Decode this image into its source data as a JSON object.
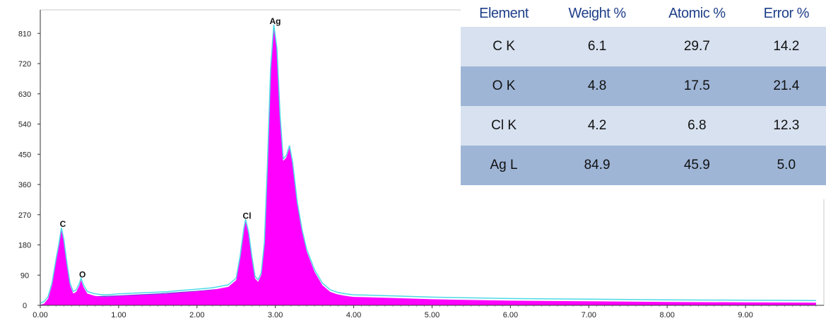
{
  "chart_data": {
    "type": "area",
    "xlim": [
      0,
      10
    ],
    "ylim": [
      0,
      880
    ],
    "x_ticks": [
      "0.00",
      "1.00",
      "2.00",
      "3.00",
      "4.00",
      "5.00",
      "6.00",
      "7.00",
      "8.00",
      "9.00"
    ],
    "y_ticks": [
      "0",
      "90",
      "180",
      "270",
      "360",
      "450",
      "540",
      "630",
      "720",
      "810"
    ],
    "spectrum_color": "#ff00ff",
    "fit_color": "#4dd9e6",
    "background_color": "#5a3fd6",
    "peaks": [
      {
        "label": "C",
        "x": 0.27,
        "y": 225
      },
      {
        "label": "O",
        "x": 0.52,
        "y": 75
      },
      {
        "label": "Cl",
        "x": 2.62,
        "y": 250
      },
      {
        "label": "Ag",
        "x": 2.98,
        "y": 830
      }
    ],
    "spectrum": [
      [
        0.0,
        0
      ],
      [
        0.05,
        5
      ],
      [
        0.1,
        20
      ],
      [
        0.15,
        60
      ],
      [
        0.2,
        130
      ],
      [
        0.24,
        180
      ],
      [
        0.27,
        225
      ],
      [
        0.3,
        190
      ],
      [
        0.34,
        120
      ],
      [
        0.38,
        60
      ],
      [
        0.42,
        35
      ],
      [
        0.46,
        40
      ],
      [
        0.5,
        60
      ],
      [
        0.52,
        75
      ],
      [
        0.55,
        55
      ],
      [
        0.6,
        35
      ],
      [
        0.7,
        28
      ],
      [
        0.8,
        25
      ],
      [
        0.9,
        26
      ],
      [
        1.0,
        28
      ],
      [
        1.2,
        30
      ],
      [
        1.4,
        32
      ],
      [
        1.6,
        34
      ],
      [
        1.8,
        38
      ],
      [
        2.0,
        42
      ],
      [
        2.2,
        46
      ],
      [
        2.4,
        55
      ],
      [
        2.5,
        75
      ],
      [
        2.55,
        140
      ],
      [
        2.6,
        225
      ],
      [
        2.62,
        250
      ],
      [
        2.66,
        210
      ],
      [
        2.7,
        140
      ],
      [
        2.74,
        80
      ],
      [
        2.78,
        70
      ],
      [
        2.82,
        90
      ],
      [
        2.86,
        180
      ],
      [
        2.9,
        420
      ],
      [
        2.94,
        700
      ],
      [
        2.98,
        830
      ],
      [
        3.02,
        760
      ],
      [
        3.06,
        560
      ],
      [
        3.1,
        430
      ],
      [
        3.14,
        440
      ],
      [
        3.18,
        470
      ],
      [
        3.22,
        420
      ],
      [
        3.28,
        300
      ],
      [
        3.34,
        220
      ],
      [
        3.4,
        160
      ],
      [
        3.5,
        100
      ],
      [
        3.6,
        60
      ],
      [
        3.7,
        40
      ],
      [
        3.8,
        32
      ],
      [
        3.9,
        28
      ],
      [
        4.0,
        25
      ],
      [
        4.5,
        22
      ],
      [
        5.0,
        18
      ],
      [
        6.0,
        14
      ],
      [
        7.0,
        12
      ],
      [
        8.0,
        10
      ],
      [
        9.0,
        9
      ],
      [
        9.9,
        8
      ]
    ],
    "background": [
      [
        0.0,
        0
      ],
      [
        0.3,
        22
      ],
      [
        0.6,
        25
      ],
      [
        1.0,
        28
      ],
      [
        1.5,
        34
      ],
      [
        2.0,
        42
      ],
      [
        2.5,
        52
      ],
      [
        2.9,
        56
      ],
      [
        3.2,
        52
      ],
      [
        3.6,
        40
      ],
      [
        4.0,
        22
      ],
      [
        4.5,
        14
      ],
      [
        5.0,
        10
      ],
      [
        6.0,
        8
      ],
      [
        7.0,
        7
      ],
      [
        8.0,
        6
      ],
      [
        9.0,
        5
      ],
      [
        9.9,
        5
      ]
    ]
  },
  "table": {
    "header_color": "#1f3f8a",
    "headers": [
      "Element",
      "Weight %",
      "Atomic %",
      "Error %"
    ],
    "rows": [
      {
        "element": "C K",
        "weight": "6.1",
        "atomic": "29.7",
        "error": "14.2"
      },
      {
        "element": "O K",
        "weight": "4.8",
        "atomic": "17.5",
        "error": "21.4"
      },
      {
        "element": "Cl K",
        "weight": "4.2",
        "atomic": "6.8",
        "error": "12.3"
      },
      {
        "element": "Ag L",
        "weight": "84.9",
        "atomic": "45.9",
        "error": "5.0"
      }
    ]
  }
}
